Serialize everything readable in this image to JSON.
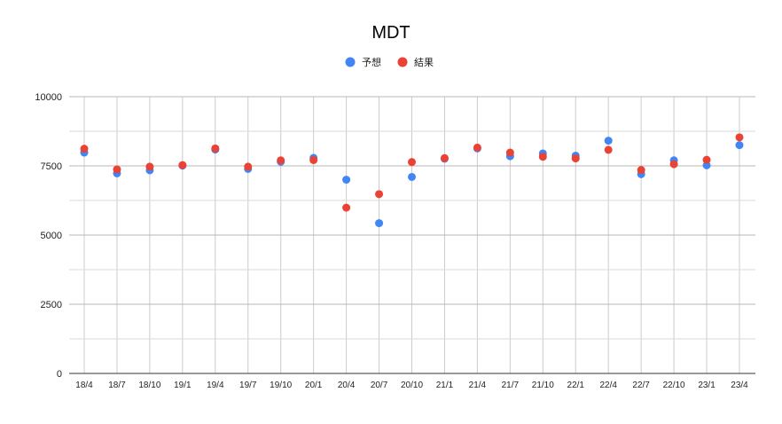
{
  "chart_data": {
    "type": "scatter",
    "title": "MDT",
    "xlabel": "",
    "ylabel": "",
    "legend_position": "top",
    "grid": true,
    "ylim": [
      0,
      10000
    ],
    "yticks": [
      0,
      2500,
      5000,
      7500,
      10000
    ],
    "categories": [
      "18/4",
      "18/7",
      "18/10",
      "19/1",
      "19/4",
      "19/7",
      "19/10",
      "20/1",
      "20/4",
      "20/7",
      "20/10",
      "21/1",
      "21/4",
      "21/7",
      "21/10",
      "22/1",
      "22/4",
      "22/7",
      "22/10",
      "23/1",
      "23/4"
    ],
    "series": [
      {
        "name": "予想",
        "color": "#4285f4",
        "values": [
          7980,
          7230,
          7340,
          7510,
          8090,
          7390,
          7650,
          7790,
          7000,
          5430,
          7100,
          7760,
          8130,
          7850,
          7950,
          7870,
          8410,
          7200,
          7700,
          7520,
          8250
        ]
      },
      {
        "name": "結果",
        "color": "#ea4335",
        "values": [
          8120,
          7370,
          7470,
          7530,
          8130,
          7470,
          7700,
          7710,
          5990,
          6480,
          7640,
          7780,
          8160,
          7980,
          7830,
          7770,
          8080,
          7350,
          7560,
          7720,
          8530
        ]
      }
    ]
  }
}
